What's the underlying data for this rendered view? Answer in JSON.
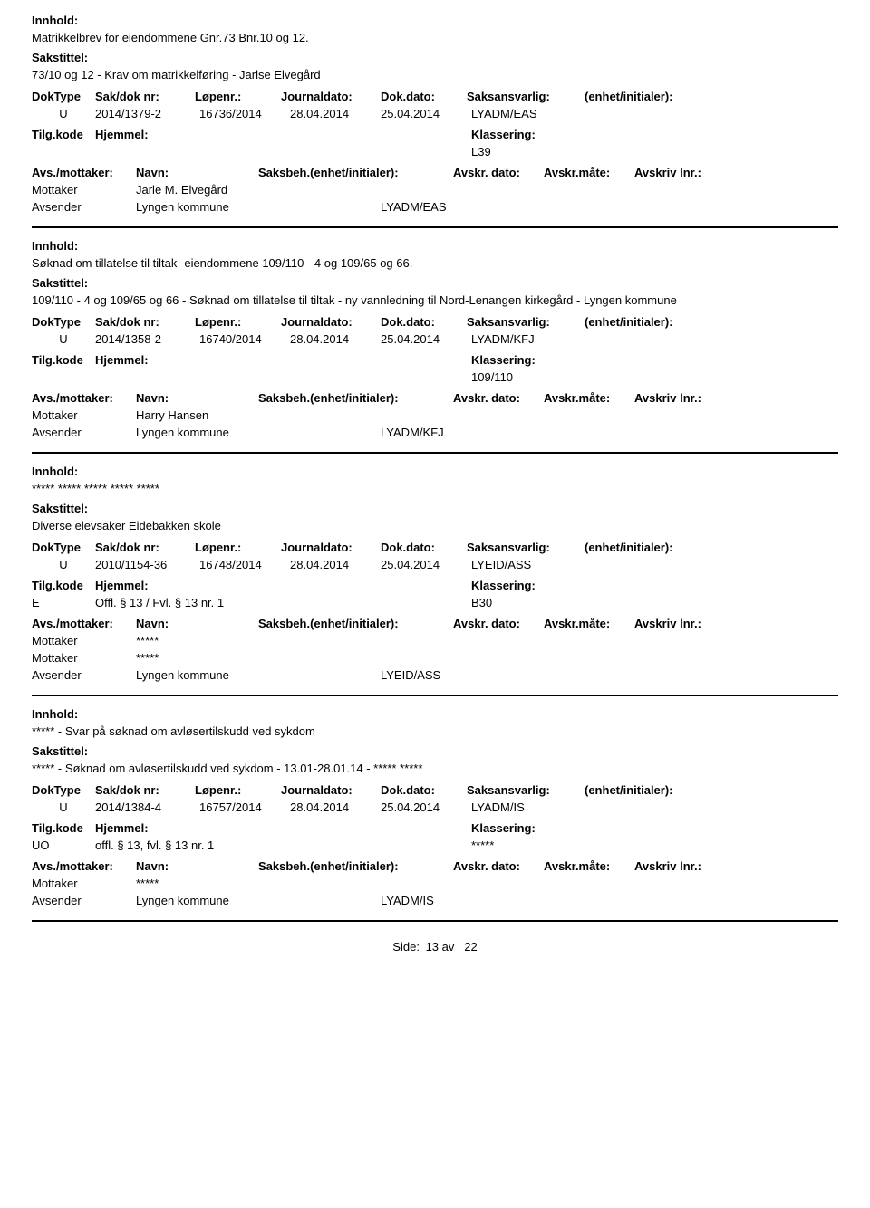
{
  "metaHeaders": {
    "doktype": "DokType",
    "sakdok": "Sak/dok nr:",
    "lopenr": "Løpenr.:",
    "jdato": "Journaldato:",
    "ddato": "Dok.dato:",
    "saksans": "Saksansvarlig:",
    "enhet": "(enhet/initialer):"
  },
  "tilgHeaders": {
    "tilgkode": "Tilg.kode",
    "hjemmel": "Hjemmel:",
    "klassering": "Klassering:"
  },
  "avsHeaders": {
    "avs": "Avs./mottaker:",
    "navn": "Navn:",
    "saksbeh": "Saksbeh.(enhet/initialer):",
    "avdato": "Avskr. dato:",
    "avmate": "Avskr.måte:",
    "avlnr": "Avskriv lnr.:"
  },
  "roles": {
    "mottaker": "Mottaker",
    "avsender": "Avsender"
  },
  "labels": {
    "innhold": "Innhold:",
    "sakstittel": "Sakstittel:"
  },
  "entries": [
    {
      "innhold": "Matrikkelbrev for eiendommene Gnr.73 Bnr.10 og 12.",
      "sakstittel": "73/10 og 12 - Krav om matrikkelføring - Jarlse Elvegård",
      "doktype": "U",
      "sakdok": "2014/1379-2",
      "lopenr": "16736/2014",
      "jdato": "28.04.2014",
      "ddato": "25.04.2014",
      "saksans": "LYADM/EAS",
      "tilgkode": "",
      "hjemmel": "",
      "klassering": "L39",
      "parties": [
        {
          "role": "Mottaker",
          "name": "Jarle M. Elvegård",
          "saksbeh": ""
        },
        {
          "role": "Avsender",
          "name": "Lyngen kommune",
          "saksbeh": "LYADM/EAS"
        }
      ]
    },
    {
      "innhold": "Søknad om tillatelse til tiltak- eiendommene 109/110 - 4 og 109/65 og 66.",
      "sakstittel": "109/110 - 4 og 109/65 og 66 - Søknad om tillatelse til tiltak - ny vannledning til Nord-Lenangen kirkegård - Lyngen kommune",
      "doktype": "U",
      "sakdok": "2014/1358-2",
      "lopenr": "16740/2014",
      "jdato": "28.04.2014",
      "ddato": "25.04.2014",
      "saksans": "LYADM/KFJ",
      "tilgkode": "",
      "hjemmel": "",
      "klassering": "109/110",
      "parties": [
        {
          "role": "Mottaker",
          "name": "Harry Hansen",
          "saksbeh": ""
        },
        {
          "role": "Avsender",
          "name": "Lyngen kommune",
          "saksbeh": "LYADM/KFJ"
        }
      ]
    },
    {
      "innhold": "***** ***** ***** ***** *****",
      "sakstittel": "Diverse elevsaker Eidebakken skole",
      "doktype": "U",
      "sakdok": "2010/1154-36",
      "lopenr": "16748/2014",
      "jdato": "28.04.2014",
      "ddato": "25.04.2014",
      "saksans": "LYEID/ASS",
      "tilgkode": "E",
      "hjemmel": "Offl. § 13 / Fvl. § 13 nr. 1",
      "klassering": "B30",
      "parties": [
        {
          "role": "Mottaker",
          "name": "*****",
          "saksbeh": ""
        },
        {
          "role": "Mottaker",
          "name": "*****",
          "saksbeh": ""
        },
        {
          "role": "Avsender",
          "name": "Lyngen kommune",
          "saksbeh": "LYEID/ASS"
        }
      ]
    },
    {
      "innhold": "***** - Svar på søknad om avløsertilskudd ved sykdom",
      "sakstittel": "***** - Søknad om avløsertilskudd ved sykdom - 13.01-28.01.14 - ***** *****",
      "doktype": "U",
      "sakdok": "2014/1384-4",
      "lopenr": "16757/2014",
      "jdato": "28.04.2014",
      "ddato": "25.04.2014",
      "saksans": "LYADM/IS",
      "tilgkode": "UO",
      "hjemmel": "offl. § 13, fvl. § 13 nr. 1",
      "klassering": "*****",
      "parties": [
        {
          "role": "Mottaker",
          "name": "*****",
          "saksbeh": ""
        },
        {
          "role": "Avsender",
          "name": "Lyngen kommune",
          "saksbeh": "LYADM/IS"
        }
      ]
    }
  ],
  "footer": {
    "side": "Side:",
    "page": "13",
    "av": "av",
    "total": "22"
  }
}
